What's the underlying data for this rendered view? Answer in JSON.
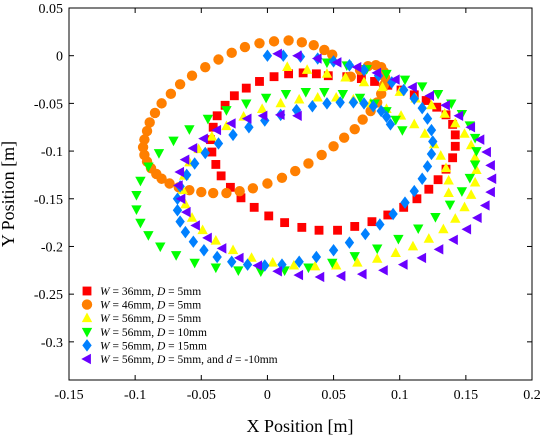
{
  "chart_data": {
    "type": "scatter",
    "xlabel": "X Position [m]",
    "ylabel": "Y Position [m]",
    "xlim": [
      -0.15,
      0.2
    ],
    "ylim": [
      -0.34,
      0.05
    ],
    "xticks": [
      "-0.15",
      "-0.1",
      "-0.05",
      "0",
      "0.05",
      "0.1",
      "0.15",
      "0.2"
    ],
    "yticks": [
      "0.05",
      "0",
      "-0.05",
      "-0.1",
      "-0.15",
      "-0.2",
      "-0.25",
      "-0.3"
    ],
    "grid": false,
    "legend_position": "bottom-left",
    "series": [
      {
        "name": "W = 36mm, D = 5mm",
        "legend_label": {
          "v1": "W",
          "t1": " = 36mm, ",
          "v2": "D",
          "t2": " = 5mm"
        },
        "marker": "square",
        "color": "#ff0000",
        "x": [
          0.06,
          0.071,
          0.081,
          0.091,
          0.101,
          0.111,
          0.12,
          0.128,
          0.135,
          0.14,
          0.142,
          0.142,
          0.14,
          0.135,
          0.129,
          0.122,
          0.113,
          0.103,
          0.091,
          0.079,
          0.066,
          0.053,
          0.039,
          0.026,
          0.013,
          0.001,
          -0.01,
          -0.02,
          -0.028,
          -0.035,
          -0.039,
          -0.042,
          -0.043,
          -0.041,
          -0.038,
          -0.032,
          -0.025,
          -0.016,
          -0.006,
          0.005,
          0.016,
          0.027,
          0.037,
          0.046
        ],
        "y": [
          -0.022,
          -0.024,
          -0.027,
          -0.031,
          -0.036,
          -0.041,
          -0.047,
          -0.054,
          -0.062,
          -0.072,
          -0.083,
          -0.095,
          -0.107,
          -0.119,
          -0.13,
          -0.14,
          -0.15,
          -0.159,
          -0.167,
          -0.174,
          -0.179,
          -0.183,
          -0.183,
          -0.18,
          -0.175,
          -0.168,
          -0.159,
          -0.149,
          -0.138,
          -0.126,
          -0.114,
          -0.101,
          -0.088,
          -0.075,
          -0.063,
          -0.052,
          -0.042,
          -0.034,
          -0.027,
          -0.022,
          -0.019,
          -0.018,
          -0.019,
          -0.021
        ]
      },
      {
        "name": "W = 46mm, D = 5mm",
        "legend_label": {
          "v1": "W",
          "t1": " = 46mm, ",
          "v2": "D",
          "t2": " = 5mm"
        },
        "marker": "circle",
        "color": "#ff7f00",
        "x": [
          0.049,
          0.043,
          0.035,
          0.026,
          0.016,
          0.005,
          -0.006,
          -0.017,
          -0.027,
          -0.037,
          -0.047,
          -0.057,
          -0.066,
          -0.073,
          -0.08,
          -0.085,
          -0.089,
          -0.091,
          -0.093,
          -0.094,
          -0.093,
          -0.091,
          -0.088,
          -0.084,
          -0.08,
          -0.074,
          -0.067,
          -0.059,
          -0.05,
          -0.041,
          -0.031,
          -0.021,
          -0.011,
          0.0,
          0.011,
          0.021,
          0.031,
          0.041,
          0.05,
          0.058,
          0.066,
          0.072,
          0.078,
          0.083,
          0.086,
          0.088,
          0.089,
          0.088,
          0.086,
          0.082,
          0.076,
          0.07,
          0.063
        ],
        "y": [
          0.001,
          0.006,
          0.011,
          0.014,
          0.016,
          0.015,
          0.013,
          0.009,
          0.003,
          -0.004,
          -0.012,
          -0.021,
          -0.03,
          -0.04,
          -0.05,
          -0.06,
          -0.07,
          -0.079,
          -0.088,
          -0.096,
          -0.104,
          -0.111,
          -0.118,
          -0.124,
          -0.129,
          -0.134,
          -0.138,
          -0.141,
          -0.143,
          -0.144,
          -0.144,
          -0.142,
          -0.139,
          -0.134,
          -0.128,
          -0.121,
          -0.113,
          -0.104,
          -0.095,
          -0.086,
          -0.077,
          -0.067,
          -0.058,
          -0.049,
          -0.04,
          -0.031,
          -0.023,
          -0.017,
          -0.012,
          -0.01,
          -0.011,
          -0.015,
          -0.022
        ]
      },
      {
        "name": "W = 56mm, D = 5mm",
        "legend_label": {
          "v1": "W",
          "t1": " = 56mm, ",
          "v2": "D",
          "t2": " = 5mm"
        },
        "marker": "triangle-up",
        "color": "#ffff00",
        "x": [
          0.015,
          0.03,
          0.045,
          0.059,
          0.073,
          0.087,
          0.1,
          0.112,
          0.124,
          0.134,
          0.142,
          0.149,
          0.154,
          0.157,
          0.158,
          0.157,
          0.154,
          0.149,
          0.142,
          0.133,
          0.122,
          0.11,
          0.097,
          0.083,
          0.068,
          0.052,
          0.036,
          0.02,
          0.004,
          -0.012,
          -0.026,
          -0.039,
          -0.049,
          -0.057,
          -0.062,
          -0.064,
          -0.063,
          -0.059,
          -0.052,
          -0.042,
          -0.031,
          -0.018,
          -0.004,
          0.01,
          0.024,
          0.038,
          0.052,
          0.065,
          0.078,
          0.09,
          0.101,
          0.111,
          0.119,
          0.126,
          0.131,
          0.135,
          0.137,
          0.137
        ],
        "y": [
          -0.012,
          -0.015,
          -0.019,
          -0.023,
          -0.028,
          -0.033,
          -0.038,
          -0.045,
          -0.052,
          -0.061,
          -0.071,
          -0.082,
          -0.094,
          -0.107,
          -0.12,
          -0.133,
          -0.146,
          -0.159,
          -0.171,
          -0.182,
          -0.192,
          -0.2,
          -0.207,
          -0.213,
          -0.217,
          -0.22,
          -0.221,
          -0.22,
          -0.217,
          -0.212,
          -0.204,
          -0.194,
          -0.183,
          -0.17,
          -0.156,
          -0.141,
          -0.126,
          -0.112,
          -0.098,
          -0.085,
          -0.074,
          -0.064,
          -0.056,
          -0.05,
          -0.046,
          -0.044,
          -0.044,
          -0.046,
          -0.05,
          -0.056,
          -0.063,
          -0.072,
          -0.082,
          -0.093,
          -0.105,
          -0.118,
          -0.131,
          -0.144
        ]
      },
      {
        "name": "W = 56mm, D = 10mm",
        "legend_label": {
          "v1": "W",
          "t1": " = 56mm, ",
          "v2": "D",
          "t2": " = 10mm"
        },
        "marker": "triangle-down",
        "color": "#00ff00",
        "x": [
          0.045,
          0.06,
          0.075,
          0.09,
          0.104,
          0.117,
          0.129,
          0.139,
          0.147,
          0.153,
          0.157,
          0.158,
          0.157,
          0.153,
          0.147,
          0.138,
          0.127,
          0.114,
          0.099,
          0.083,
          0.066,
          0.049,
          0.031,
          0.013,
          -0.005,
          -0.022,
          -0.039,
          -0.055,
          -0.069,
          -0.081,
          -0.09,
          -0.096,
          -0.099,
          -0.099,
          -0.096,
          -0.09,
          -0.082,
          -0.071,
          -0.059,
          -0.045,
          -0.031,
          -0.016,
          -0.001,
          0.014,
          0.029,
          0.043,
          0.057,
          0.07,
          0.081,
          0.09,
          0.097,
          0.102
        ],
        "y": [
          -0.007,
          -0.01,
          -0.014,
          -0.019,
          -0.025,
          -0.032,
          -0.04,
          -0.05,
          -0.061,
          -0.073,
          -0.086,
          -0.1,
          -0.114,
          -0.128,
          -0.142,
          -0.156,
          -0.169,
          -0.181,
          -0.192,
          -0.202,
          -0.21,
          -0.217,
          -0.222,
          -0.225,
          -0.226,
          -0.225,
          -0.222,
          -0.217,
          -0.209,
          -0.2,
          -0.188,
          -0.175,
          -0.161,
          -0.146,
          -0.131,
          -0.116,
          -0.102,
          -0.089,
          -0.077,
          -0.066,
          -0.057,
          -0.05,
          -0.044,
          -0.04,
          -0.038,
          -0.038,
          -0.04,
          -0.044,
          -0.05,
          -0.058,
          -0.067,
          -0.078
        ]
      },
      {
        "name": "W = 56mm, D = 15mm",
        "legend_label": {
          "v1": "W",
          "t1": " = 56mm, ",
          "v2": "D",
          "t2": " = 15mm"
        },
        "marker": "diamond",
        "color": "#0080ff",
        "x": [
          0.0,
          0.012,
          0.025,
          0.038,
          0.05,
          0.062,
          0.073,
          0.084,
          0.094,
          0.103,
          0.111,
          0.117,
          0.121,
          0.124,
          0.125,
          0.124,
          0.121,
          0.117,
          0.111,
          0.104,
          0.095,
          0.085,
          0.074,
          0.062,
          0.05,
          0.037,
          0.024,
          0.011,
          -0.002,
          -0.015,
          -0.027,
          -0.038,
          -0.048,
          -0.056,
          -0.062,
          -0.066,
          -0.068,
          -0.068,
          -0.066,
          -0.061,
          -0.055,
          -0.047,
          -0.037,
          -0.026,
          -0.014,
          -0.002,
          0.01,
          0.022,
          0.034,
          0.045,
          0.055,
          0.065,
          0.073,
          0.08,
          0.086,
          0.09,
          0.093
        ],
        "y": [
          0.0,
          0.0,
          -0.001,
          -0.003,
          -0.006,
          -0.01,
          -0.015,
          -0.021,
          -0.028,
          -0.036,
          -0.045,
          -0.055,
          -0.066,
          -0.078,
          -0.09,
          -0.103,
          -0.116,
          -0.129,
          -0.142,
          -0.154,
          -0.166,
          -0.177,
          -0.187,
          -0.196,
          -0.204,
          -0.211,
          -0.216,
          -0.219,
          -0.22,
          -0.219,
          -0.216,
          -0.211,
          -0.204,
          -0.195,
          -0.185,
          -0.174,
          -0.162,
          -0.15,
          -0.137,
          -0.125,
          -0.113,
          -0.102,
          -0.092,
          -0.083,
          -0.075,
          -0.068,
          -0.062,
          -0.057,
          -0.053,
          -0.05,
          -0.049,
          -0.049,
          -0.05,
          -0.053,
          -0.058,
          -0.064,
          -0.072
        ]
      },
      {
        "name": "W = 56mm, D = 5mm, and d = -10mm",
        "legend_label": {
          "v1": "W",
          "t1": " = 56mm, ",
          "v2": "D",
          "t2": " = 5mm, and ",
          "v3": "d",
          "t3": " = -10mm"
        },
        "marker": "triangle-left",
        "color": "#6a00ff",
        "x": [
          0.008,
          0.023,
          0.038,
          0.053,
          0.068,
          0.083,
          0.097,
          0.11,
          0.123,
          0.135,
          0.145,
          0.154,
          0.161,
          0.166,
          0.169,
          0.17,
          0.169,
          0.165,
          0.159,
          0.151,
          0.141,
          0.13,
          0.117,
          0.103,
          0.088,
          0.072,
          0.056,
          0.04,
          0.024,
          0.008,
          -0.007,
          -0.021,
          -0.034,
          -0.045,
          -0.054,
          -0.061,
          -0.065,
          -0.067,
          -0.066,
          -0.062,
          -0.056,
          -0.048,
          -0.038,
          -0.027,
          -0.015,
          -0.003,
          0.01,
          0.023
        ],
        "y": [
          0.002,
          0.0,
          -0.003,
          -0.007,
          -0.012,
          -0.018,
          -0.025,
          -0.033,
          -0.042,
          -0.052,
          -0.063,
          -0.075,
          -0.088,
          -0.101,
          -0.115,
          -0.129,
          -0.143,
          -0.157,
          -0.17,
          -0.182,
          -0.193,
          -0.203,
          -0.212,
          -0.219,
          -0.225,
          -0.229,
          -0.231,
          -0.232,
          -0.23,
          -0.226,
          -0.22,
          -0.212,
          -0.202,
          -0.191,
          -0.178,
          -0.164,
          -0.15,
          -0.136,
          -0.122,
          -0.109,
          -0.097,
          -0.087,
          -0.078,
          -0.071,
          -0.066,
          -0.063,
          -0.062,
          -0.063
        ]
      }
    ]
  }
}
